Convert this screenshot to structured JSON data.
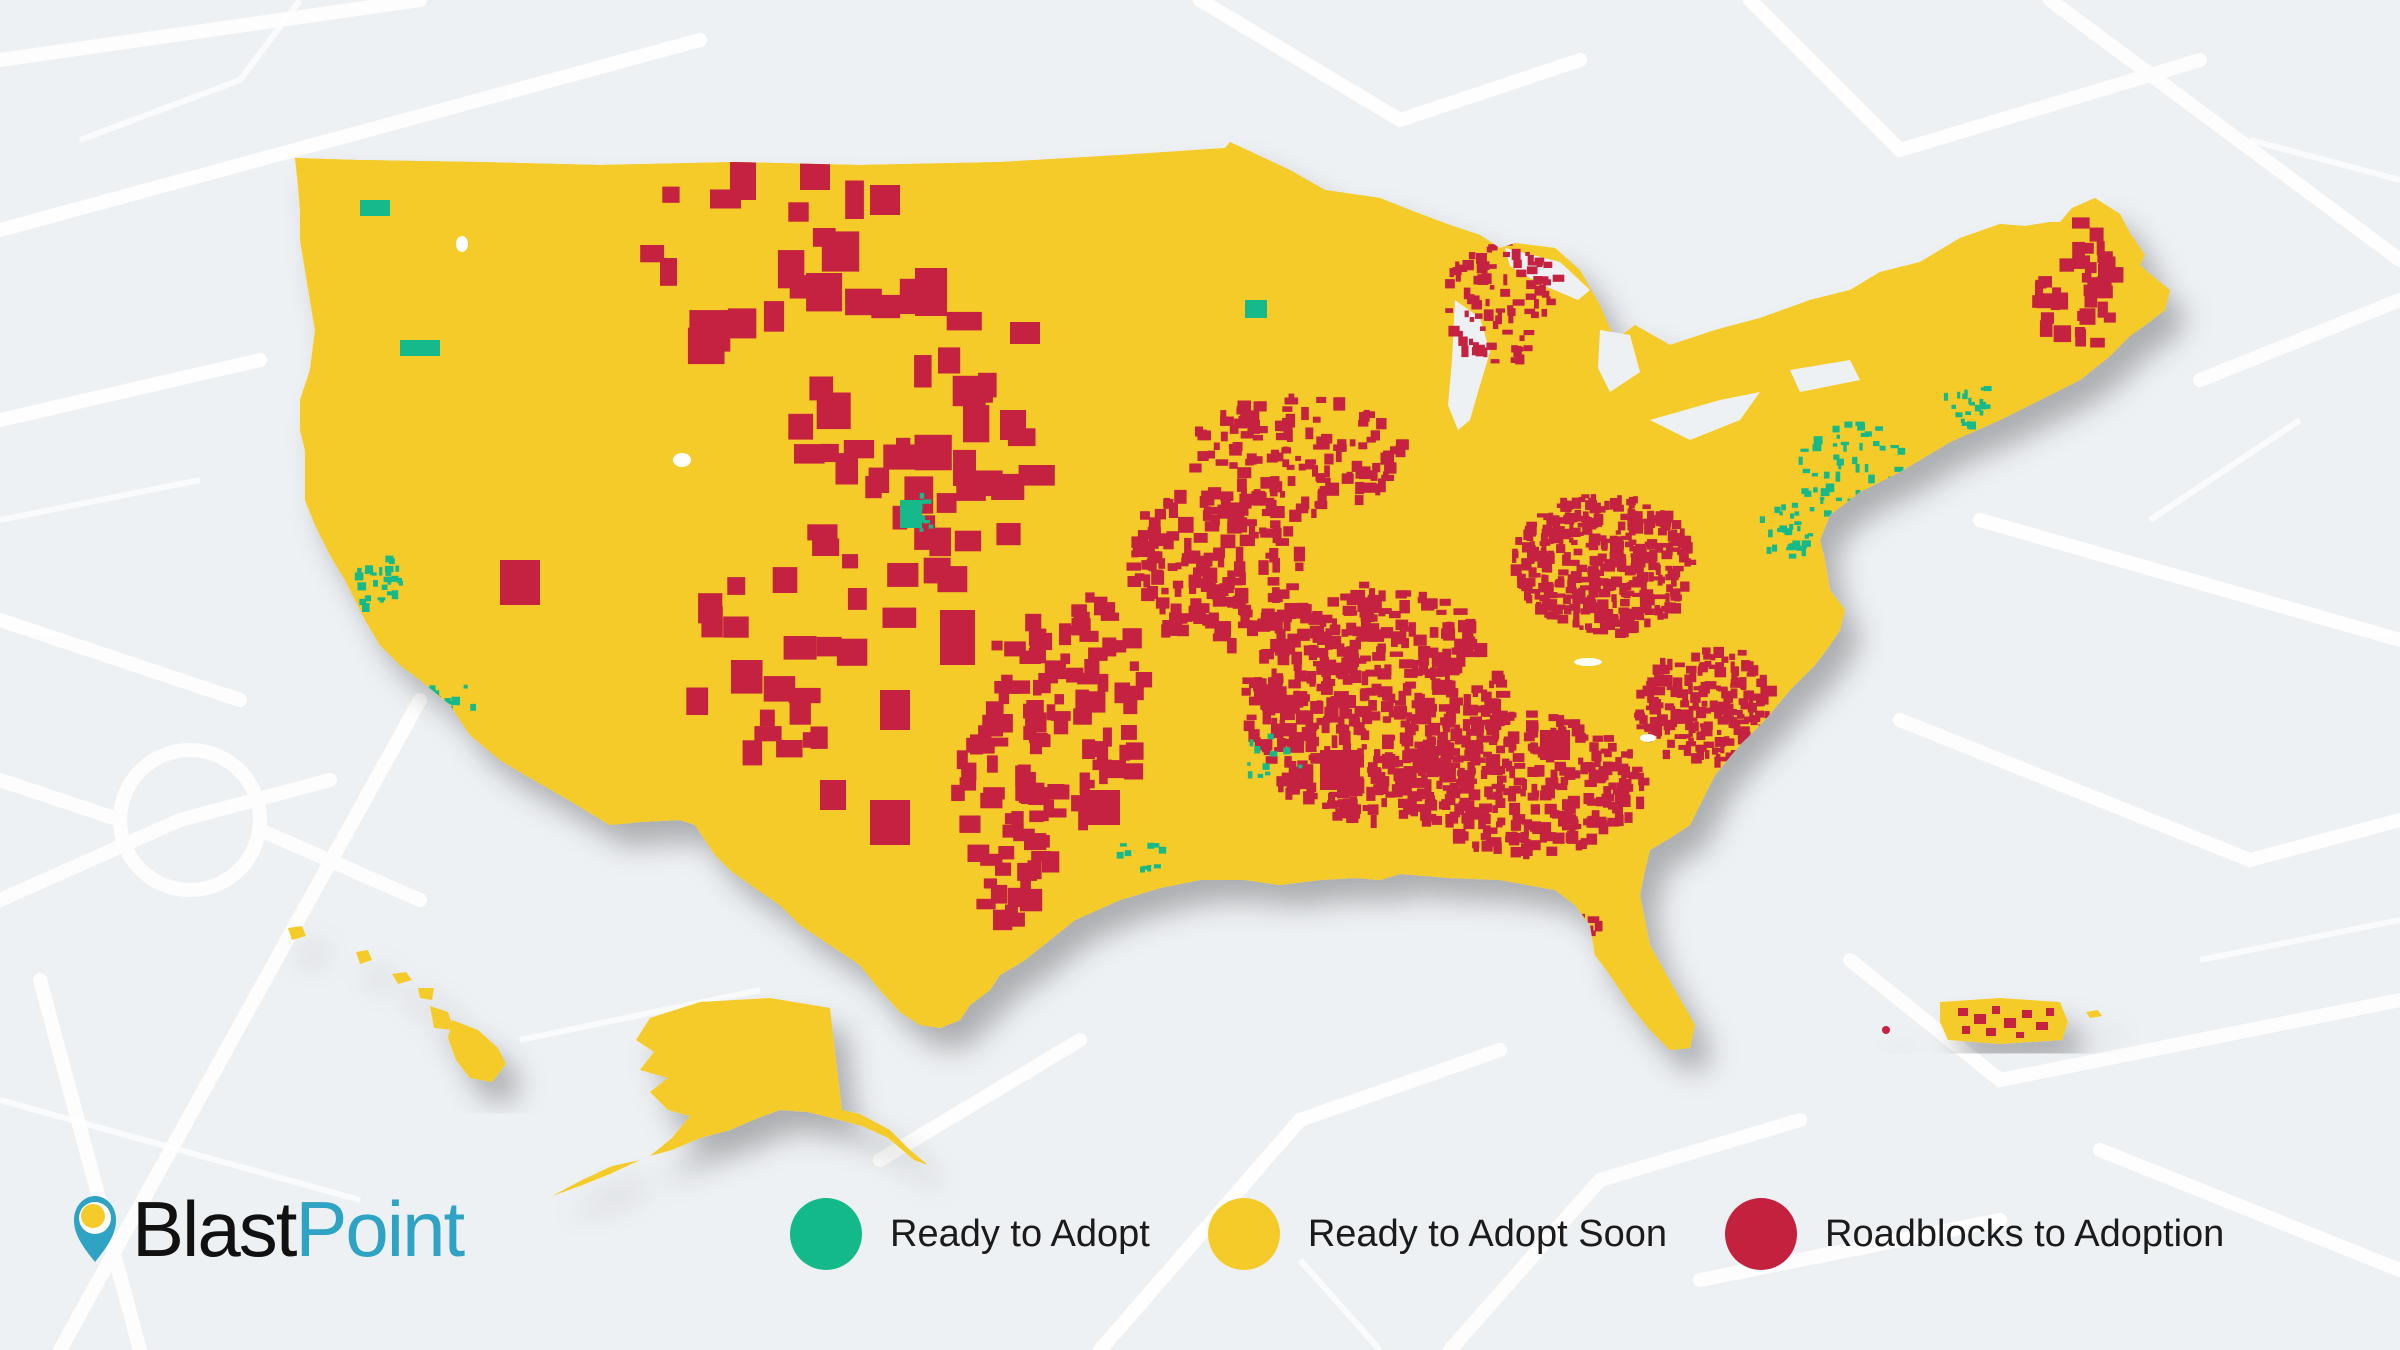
{
  "colors": {
    "background": "#eef1f4",
    "street_lines": "#ffffff",
    "ready_to_adopt": "#14b98a",
    "ready_to_adopt_soon": "#f5cb2a",
    "roadblocks_to_adoption": "#c4213f",
    "brand_dark": "#111111",
    "brand_blue": "#2ea3c4",
    "brand_yellow": "#f5cb2a"
  },
  "brand": {
    "logo_icon": "location-pin-icon",
    "name_part1": "Blast",
    "name_part2": "Point"
  },
  "legend": {
    "items": [
      {
        "label": "Ready to Adopt",
        "color": "#14b98a"
      },
      {
        "label": "Ready to Adopt Soon",
        "color": "#f5cb2a"
      },
      {
        "label": "Roadblocks to Adoption",
        "color": "#c4213f"
      }
    ]
  },
  "map": {
    "regions_shown": [
      "Contiguous United States",
      "Alaska",
      "Hawaii",
      "Puerto Rico"
    ]
  }
}
